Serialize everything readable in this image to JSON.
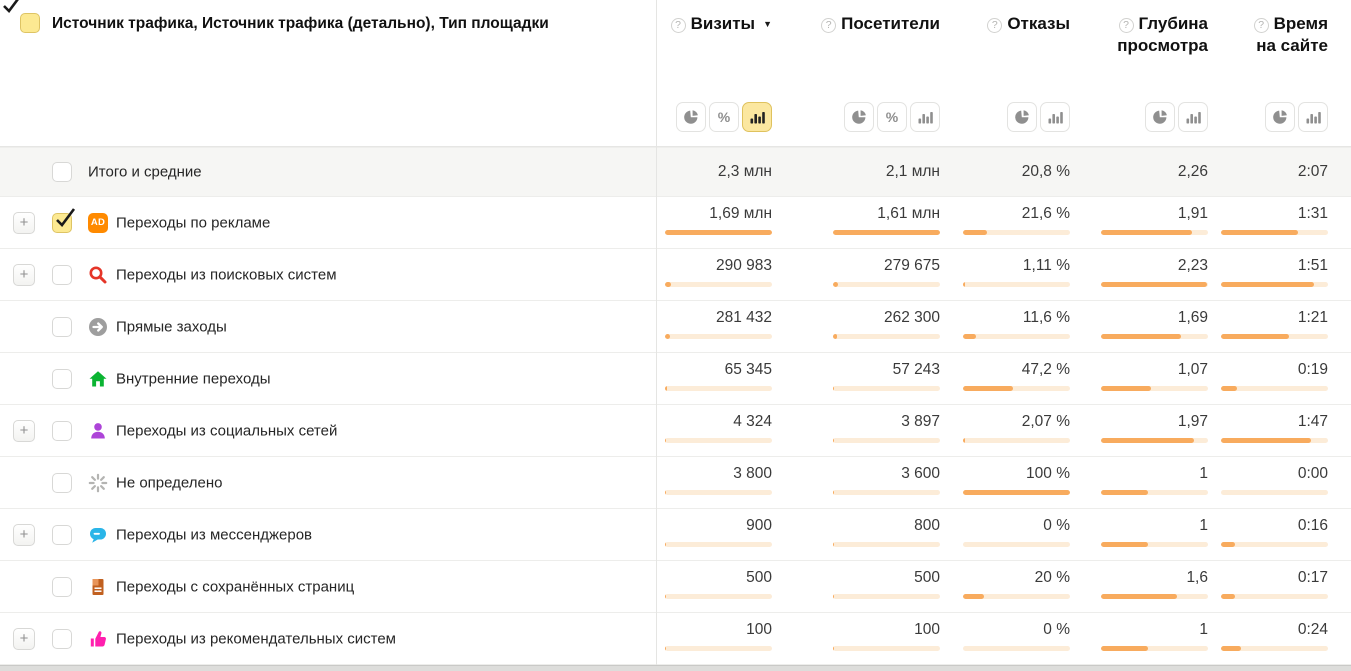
{
  "header": {
    "dimension_title": "Источник трафика, Источник трафика (детально), Тип площадки",
    "columns": [
      {
        "label": "Визиты",
        "help_icon": "?",
        "sort_indicator": "▼",
        "toggles": [
          "pie",
          "percent",
          "bar"
        ],
        "active_toggle": "bar"
      },
      {
        "label": "Посетители",
        "help_icon": "?",
        "sort_indicator": "",
        "toggles": [
          "pie",
          "percent",
          "bar"
        ],
        "active_toggle": ""
      },
      {
        "label": "Отказы",
        "help_icon": "?",
        "sort_indicator": "",
        "toggles": [
          "pie",
          "bar"
        ],
        "active_toggle": ""
      },
      {
        "label": "Глубина просмотра",
        "help_icon": "?",
        "sort_indicator": "",
        "toggles": [
          "pie",
          "bar"
        ],
        "active_toggle": ""
      },
      {
        "label": "Время на сайте",
        "help_icon": "?",
        "sort_indicator": "",
        "toggles": [
          "pie",
          "bar"
        ],
        "active_toggle": ""
      }
    ]
  },
  "totals_row": {
    "label": "Итого и средние",
    "checked": false,
    "values": [
      "2,3 млн",
      "2,1 млн",
      "20,8 %",
      "2,26",
      "2:07"
    ]
  },
  "rows": [
    {
      "label": "Переходы по рекламе",
      "icon": "ad-icon",
      "expandable": true,
      "checked": true,
      "values": [
        "1,69 млн",
        "1,61 млн",
        "21,6 %",
        "1,91",
        "1:31"
      ],
      "bar_percents": [
        100,
        100,
        22,
        85,
        72
      ]
    },
    {
      "label": "Переходы из поисковых систем",
      "icon": "search-icon",
      "expandable": true,
      "checked": false,
      "values": [
        "290 983",
        "279 675",
        "1,11 %",
        "2,23",
        "1:51"
      ],
      "bar_percents": [
        5.5,
        5,
        2,
        99,
        87
      ]
    },
    {
      "label": "Прямые заходы",
      "icon": "direct-icon",
      "expandable": false,
      "checked": false,
      "values": [
        "281 432",
        "262 300",
        "11,6 %",
        "1,69",
        "1:21"
      ],
      "bar_percents": [
        4.5,
        4,
        12,
        75,
        64
      ]
    },
    {
      "label": "Внутренние переходы",
      "icon": "internal-icon",
      "expandable": false,
      "checked": false,
      "values": [
        "65 345",
        "57 243",
        "47,2 %",
        "1,07",
        "0:19"
      ],
      "bar_percents": [
        1.5,
        1.2,
        47,
        47,
        15
      ]
    },
    {
      "label": "Переходы из социальных сетей",
      "icon": "social-icon",
      "expandable": true,
      "checked": false,
      "values": [
        "4 324",
        "3 897",
        "2,07 %",
        "1,97",
        "1:47"
      ],
      "bar_percents": [
        0.8,
        0.7,
        2,
        87,
        84
      ]
    },
    {
      "label": "Не определено",
      "icon": "undefined-icon",
      "expandable": false,
      "checked": false,
      "values": [
        "3 800",
        "3 600",
        "100 %",
        "1",
        "0:00"
      ],
      "bar_percents": [
        0.7,
        0.6,
        100,
        44,
        0
      ]
    },
    {
      "label": "Переходы из мессенджеров",
      "icon": "messenger-icon",
      "expandable": true,
      "checked": false,
      "values": [
        "900",
        "800",
        "0 %",
        "1",
        "0:16"
      ],
      "bar_percents": [
        0.4,
        0.3,
        0,
        44,
        13
      ]
    },
    {
      "label": "Переходы с сохранённых страниц",
      "icon": "saved-pages-icon",
      "expandable": false,
      "checked": false,
      "values": [
        "500",
        "500",
        "20 %",
        "1,6",
        "0:17"
      ],
      "bar_percents": [
        0.3,
        0.3,
        20,
        71,
        13.5
      ]
    },
    {
      "label": "Переходы из рекомендательных систем",
      "icon": "recommend-icon",
      "expandable": true,
      "checked": false,
      "values": [
        "100",
        "100",
        "0 %",
        "1",
        "0:24"
      ],
      "bar_percents": [
        0.2,
        0.2,
        0,
        44,
        19
      ]
    }
  ],
  "colors": {
    "bar_fill": "#f8ab5e",
    "bar_track": "#fcecd8",
    "toggle_selected_bg": "#fbe7a0",
    "toggle_selected_border": "#dfc25e",
    "totals_row_bg": "#f6f6f4",
    "checkbox_checked_bg": "#fce992",
    "checkbox_checked_border": "#dec464",
    "ad_icon": "#ff8a00",
    "search_icon": "#e53528",
    "direct_icon": "#9e9e9e",
    "internal_icon": "#0ab432",
    "social_icon": "#ad44d8",
    "undefined_icon": "#b4b4b2",
    "messenger_icon": "#2ab5e8",
    "saved_pages_icon": "#c1601f",
    "recommend_icon": "#ff1fae"
  }
}
